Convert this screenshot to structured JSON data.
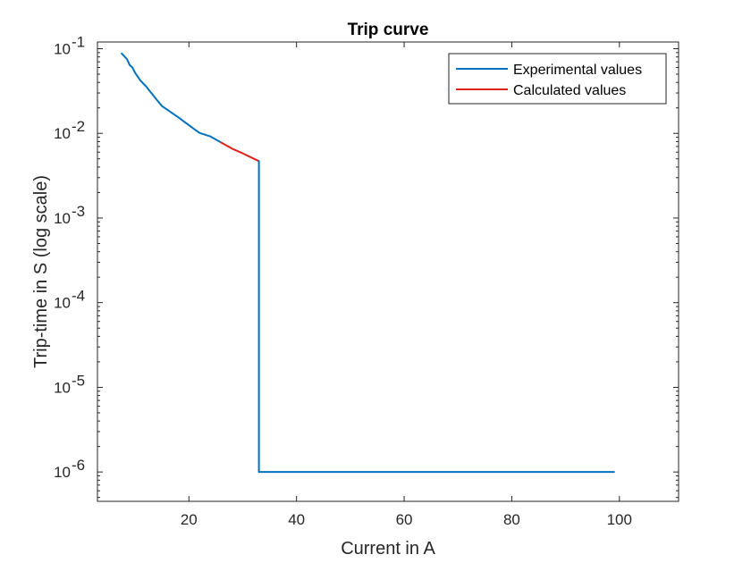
{
  "chart_data": {
    "type": "line",
    "title": "Trip curve",
    "xlabel": "Current in A",
    "ylabel": "Trip-time in S (log scale)",
    "xlim": [
      3,
      111
    ],
    "ylim": [
      4.5e-07,
      0.12
    ],
    "y_scale": "log",
    "x_ticks": [
      20,
      40,
      60,
      80,
      100
    ],
    "x_tick_labels": [
      "20",
      "40",
      "60",
      "80",
      "100"
    ],
    "y_ticks": [
      {
        "value": 0.1,
        "base": "10",
        "exp": "-1"
      },
      {
        "value": 0.01,
        "base": "10",
        "exp": "-2"
      },
      {
        "value": 0.001,
        "base": "10",
        "exp": "-3"
      },
      {
        "value": 0.0001,
        "base": "10",
        "exp": "-4"
      },
      {
        "value": 1e-05,
        "base": "10",
        "exp": "-5"
      },
      {
        "value": 1e-06,
        "base": "10",
        "exp": "-6"
      }
    ],
    "grid": false,
    "legend_position": "top-right",
    "series": [
      {
        "name": "Experimental values",
        "color": "#0072BD",
        "x": [
          7.5,
          8.5,
          9,
          9.5,
          10,
          11,
          12,
          13,
          14,
          15,
          16,
          18,
          20,
          21,
          22,
          24,
          26
        ],
        "y": [
          0.088,
          0.075,
          0.064,
          0.06,
          0.052,
          0.042,
          0.036,
          0.03,
          0.025,
          0.021,
          0.019,
          0.0155,
          0.0125,
          0.0112,
          0.0101,
          0.0092,
          0.0078
        ]
      },
      {
        "name": "Calculated values",
        "color": "#E0201B",
        "x": [
          26,
          28,
          30,
          33
        ],
        "y": [
          0.0078,
          0.0066,
          0.0058,
          0.0047
        ]
      },
      {
        "name": "",
        "color": "#0072BD",
        "x": [
          33,
          33,
          99
        ],
        "y": [
          0.0047,
          1e-06,
          1e-06
        ]
      }
    ]
  }
}
